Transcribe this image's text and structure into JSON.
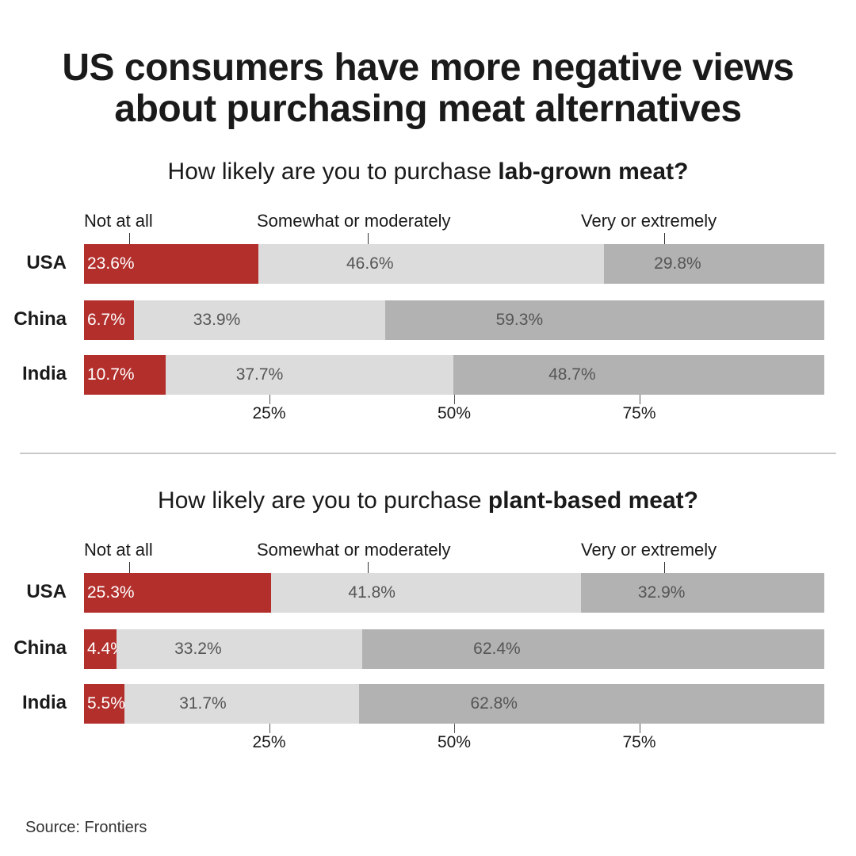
{
  "title": {
    "line1": "US consumers have more negative views",
    "line2": "about purchasing meat alternatives"
  },
  "chart_data": [
    {
      "type": "bar",
      "orientation": "horizontal",
      "stacked": true,
      "title_prefix": "How likely are you to purchase ",
      "title_emphasis": "lab-grown meat?",
      "categories": [
        "USA",
        "China",
        "India"
      ],
      "series": [
        {
          "name": "Not at all",
          "values": [
            23.6,
            6.7,
            10.7
          ],
          "labels": [
            "23.6%",
            "6.7%",
            "10.7%"
          ]
        },
        {
          "name": "Somewhat or moderately",
          "values": [
            46.6,
            33.9,
            37.7
          ],
          "labels": [
            "46.6%",
            "33.9%",
            "37.7%"
          ]
        },
        {
          "name": "Very or extremely",
          "values": [
            29.8,
            59.3,
            48.7
          ],
          "labels": [
            "29.8%",
            "59.3%",
            "48.7%"
          ]
        }
      ],
      "xticks": [
        25,
        50,
        75
      ],
      "xtick_labels": [
        "25%",
        "50%",
        "75%"
      ]
    },
    {
      "type": "bar",
      "orientation": "horizontal",
      "stacked": true,
      "title_prefix": "How likely are you to purchase ",
      "title_emphasis": "plant-based meat?",
      "categories": [
        "USA",
        "China",
        "India"
      ],
      "series": [
        {
          "name": "Not at all",
          "values": [
            25.3,
            4.4,
            5.5
          ],
          "labels": [
            "25.3%",
            "4.4%",
            "5.5%"
          ]
        },
        {
          "name": "Somewhat or moderately",
          "values": [
            41.8,
            33.2,
            31.7
          ],
          "labels": [
            "41.8%",
            "33.2%",
            "31.7%"
          ]
        },
        {
          "name": "Very or extremely",
          "values": [
            32.9,
            62.4,
            62.8
          ],
          "labels": [
            "32.9%",
            "62.4%",
            "62.8%"
          ]
        }
      ],
      "xticks": [
        25,
        50,
        75
      ],
      "xtick_labels": [
        "25%",
        "50%",
        "75%"
      ]
    }
  ],
  "colors": {
    "not_at_all": "#b22f2c",
    "somewhat": "#dcdcdc",
    "very": "#b2b2b2"
  },
  "source": "Source: Frontiers"
}
